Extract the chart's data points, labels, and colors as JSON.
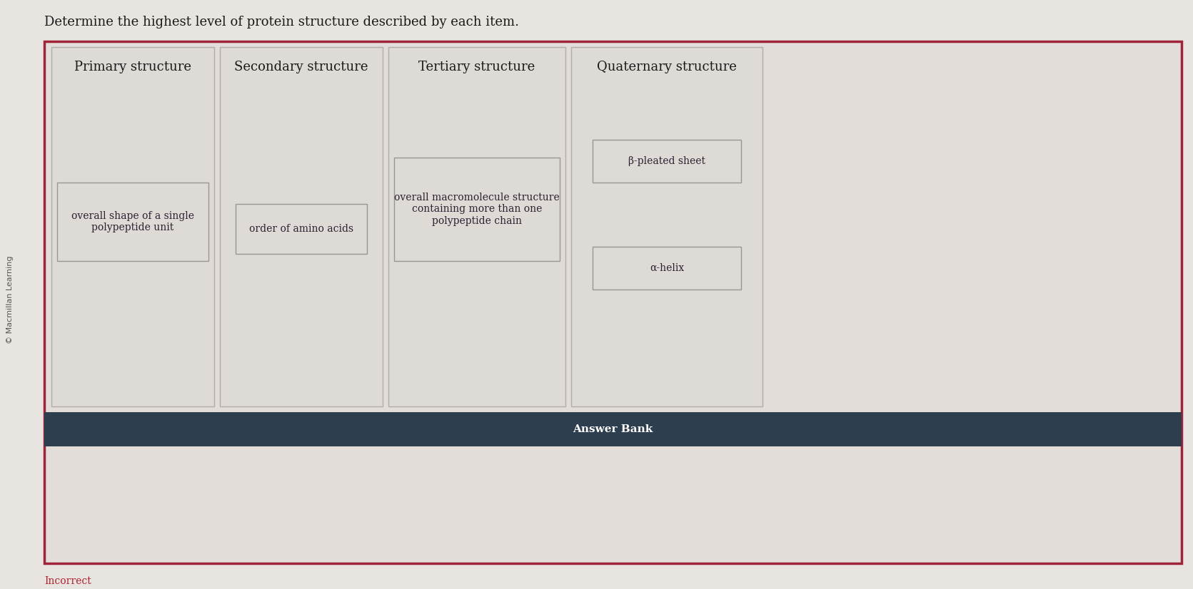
{
  "title": "Determine the highest level of protein structure described by each item.",
  "title_fontsize": 13,
  "watermark": "© Macmillan Learning",
  "background_color": "#e8e4df",
  "outer_border_color": "#a0233a",
  "main_area_bg": "#e2ddd8",
  "col_box_bg": "#dedad5",
  "col_box_border": "#b0aca8",
  "inner_box_bg": "#dedad5",
  "inner_box_border": "#9a9690",
  "answer_bank_label": "Answer Bank",
  "answer_bank_bg": "#2d3e4e",
  "answer_bank_text_color": "#ffffff",
  "incorrect_label": "Incorrect",
  "incorrect_color": "#b02030",
  "col_labels": [
    "Primary structure",
    "Secondary structure",
    "Tertiary structure",
    "Quaternary structure"
  ],
  "col_label_fontsize": 13,
  "content_fontsize": 10,
  "answer_bank_fontsize": 11,
  "watermark_fontsize": 8,
  "title_color": "#1a1a1a",
  "content_color": "#2a2030"
}
